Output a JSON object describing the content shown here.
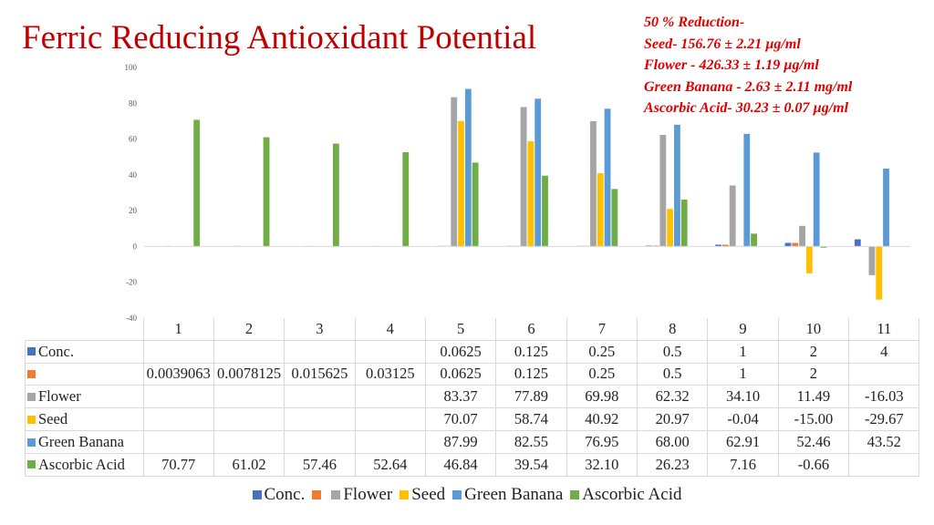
{
  "note_lines": [
    "50 % Reduction-",
    "Seed- 156.76 ± 2.21 µg/ml",
    "Flower - 426.33 ±  1.19 µg/ml",
    "Green Banana - 2.63 ± 2.11 mg/ml",
    "Ascorbic Acid- 30.23 ±  0.07 µg/ml"
  ],
  "chart_data": {
    "type": "bar",
    "title": "Ferric Reducing Antioxidant Potential",
    "categories": [
      "1",
      "2",
      "3",
      "4",
      "5",
      "6",
      "7",
      "8",
      "9",
      "10",
      "11"
    ],
    "ylim": [
      -40,
      100
    ],
    "yticks": [
      "100",
      "80",
      "60",
      "40",
      "20",
      "0",
      "-20",
      "-40"
    ],
    "grid": false,
    "legend_position": "bottom",
    "series": [
      {
        "name": "Conc.",
        "color": "#4472c4",
        "values": [
          null,
          null,
          null,
          null,
          0.0625,
          0.125,
          0.25,
          0.5,
          1,
          2,
          4
        ],
        "labels": [
          "",
          "",
          "",
          "",
          "0.0625",
          "0.125",
          "0.25",
          "0.5",
          "1",
          "2",
          "4"
        ]
      },
      {
        "name": "",
        "color": "#ed7d31",
        "values": [
          0.0039063,
          0.0078125,
          0.015625,
          0.03125,
          0.0625,
          0.125,
          0.25,
          0.5,
          1,
          2,
          null
        ],
        "labels": [
          "0.0039063",
          "0.0078125",
          "0.015625",
          "0.03125",
          "0.0625",
          "0.125",
          "0.25",
          "0.5",
          "1",
          "2",
          ""
        ]
      },
      {
        "name": "Flower",
        "color": "#a5a5a5",
        "values": [
          null,
          null,
          null,
          null,
          83.37,
          77.89,
          69.98,
          62.32,
          34.1,
          11.49,
          -16.03
        ],
        "labels": [
          "",
          "",
          "",
          "",
          "83.37",
          "77.89",
          "69.98",
          "62.32",
          "34.10",
          "11.49",
          "-16.03"
        ]
      },
      {
        "name": "Seed",
        "color": "#ffc000",
        "values": [
          null,
          null,
          null,
          null,
          70.07,
          58.74,
          40.92,
          20.97,
          -0.04,
          -15.0,
          -29.67
        ],
        "labels": [
          "",
          "",
          "",
          "",
          "70.07",
          "58.74",
          "40.92",
          "20.97",
          "-0.04",
          "-15.00",
          "-29.67"
        ]
      },
      {
        "name": "Green Banana",
        "color": "#5b9bd5",
        "values": [
          null,
          null,
          null,
          null,
          87.99,
          82.55,
          76.95,
          68.0,
          62.91,
          52.46,
          43.52
        ],
        "labels": [
          "",
          "",
          "",
          "",
          "87.99",
          "82.55",
          "76.95",
          "68.00",
          "62.91",
          "52.46",
          "43.52"
        ]
      },
      {
        "name": "Ascorbic Acid",
        "color": "#70ad47",
        "values": [
          70.77,
          61.02,
          57.46,
          52.64,
          46.84,
          39.54,
          32.1,
          26.23,
          7.16,
          -0.66,
          null
        ],
        "labels": [
          "70.77",
          "61.02",
          "57.46",
          "52.64",
          "46.84",
          "39.54",
          "32.10",
          "26.23",
          "7.16",
          "-0.66",
          ""
        ]
      }
    ]
  }
}
